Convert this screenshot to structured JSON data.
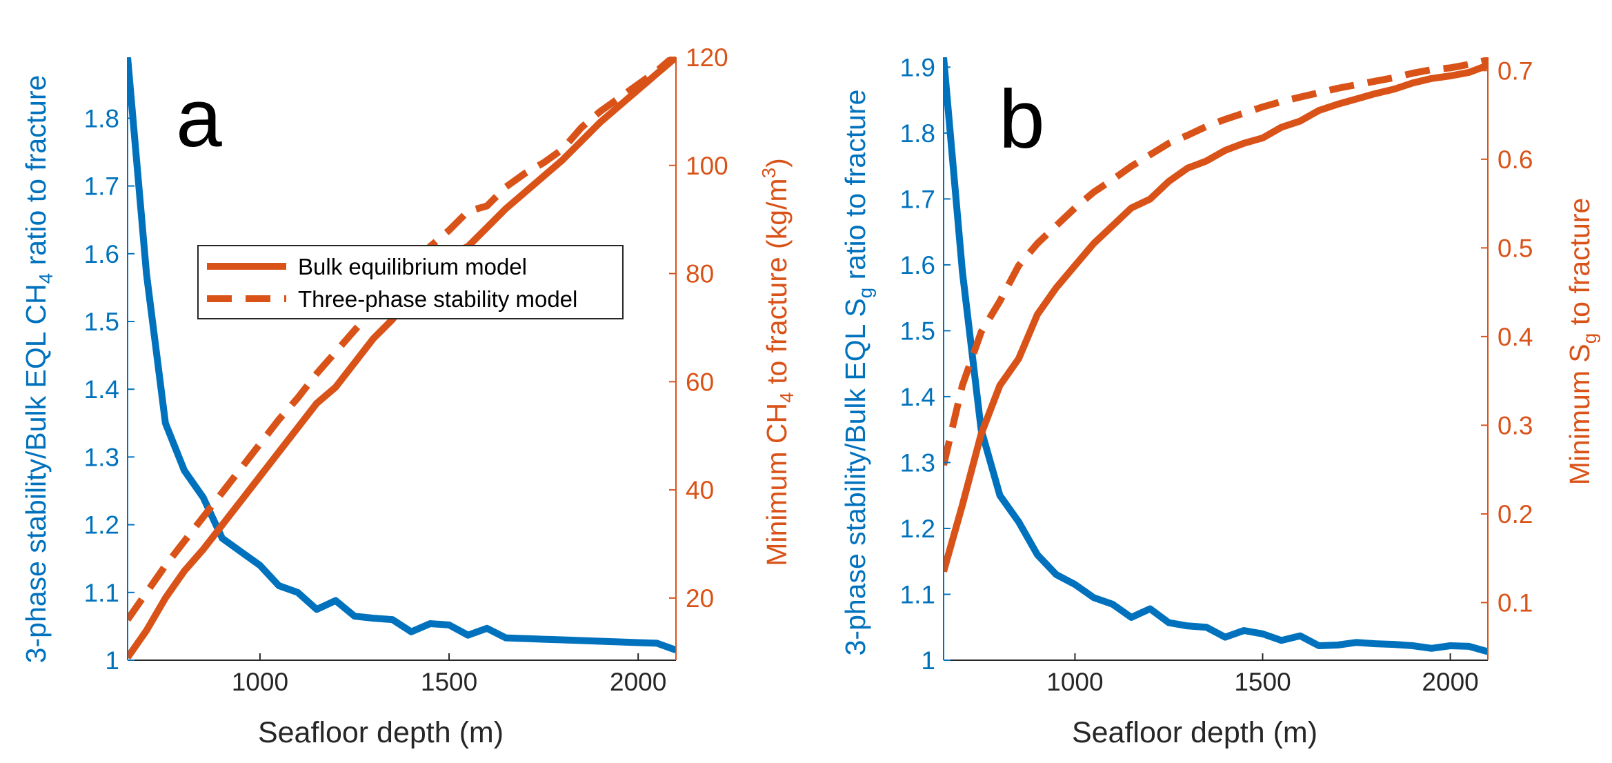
{
  "colors": {
    "ratio": "#0072BD",
    "minimum": "#D95319",
    "axis": "#262626"
  },
  "legend": {
    "items": [
      {
        "label": "Bulk equilibrium model",
        "style": "solid"
      },
      {
        "label": "Three-phase stability model",
        "style": "dashed"
      }
    ]
  },
  "chart_data": [
    {
      "type": "line",
      "panel_label": "a",
      "xlabel": "Seafloor depth (m)",
      "ylabel_left": {
        "main": "3-phase stability/Bulk EQL CH",
        "sub": "4",
        "suffix": " ratio to fracture"
      },
      "ylabel_right": {
        "main": "Minimum CH",
        "sub": "4",
        "mid": " to fracture (kg/m",
        "sup": "3",
        "suffix": ")"
      },
      "xlim": [
        650,
        2100
      ],
      "ylim_left": [
        1,
        1.89
      ],
      "ylim_right": [
        8.5,
        120
      ],
      "xticks": [
        1000,
        1500,
        2000
      ],
      "xtick_labels": [
        "1000",
        "1500",
        "2000"
      ],
      "yticks_left": [
        1,
        1.1,
        1.2,
        1.3,
        1.4,
        1.5,
        1.6,
        1.7,
        1.8
      ],
      "ytick_labels_left": [
        "1",
        "1.1",
        "1.2",
        "1.3",
        "1.4",
        "1.5",
        "1.6",
        "1.7",
        "1.8"
      ],
      "yticks_right": [
        20,
        40,
        60,
        80,
        100,
        120
      ],
      "ytick_labels_right": [
        "20",
        "40",
        "60",
        "80",
        "100",
        "120"
      ],
      "legend_position": "middle-left",
      "series": [
        {
          "axis": "left",
          "style": "solid",
          "color": "ratio",
          "x": [
            650,
            700,
            750,
            800,
            850,
            900,
            950,
            1000,
            1050,
            1100,
            1150,
            1200,
            1250,
            1300,
            1350,
            1400,
            1450,
            1500,
            1550,
            1600,
            1650,
            1700,
            1750,
            1800,
            1850,
            1900,
            1950,
            2000,
            2050,
            2100
          ],
          "values": [
            1.89,
            1.57,
            1.35,
            1.28,
            1.24,
            1.18,
            1.16,
            1.14,
            1.11,
            1.1,
            1.075,
            1.088,
            1.065,
            1.062,
            1.06,
            1.042,
            1.054,
            1.052,
            1.037,
            1.047,
            1.033,
            1.032,
            1.031,
            1.03,
            1.029,
            1.028,
            1.027,
            1.026,
            1.025,
            1.015
          ]
        },
        {
          "axis": "right",
          "style": "solid",
          "color": "minimum",
          "x": [
            650,
            700,
            750,
            800,
            850,
            900,
            950,
            1000,
            1050,
            1100,
            1150,
            1200,
            1250,
            1300,
            1350,
            1400,
            1450,
            1500,
            1550,
            1600,
            1650,
            1700,
            1750,
            1800,
            1850,
            1900,
            1950,
            2000,
            2050,
            2100
          ],
          "values": [
            9,
            14,
            20,
            25,
            29,
            33.5,
            38,
            42.5,
            47,
            51.5,
            56,
            59,
            63.5,
            68,
            71.5,
            76,
            80,
            83.5,
            85,
            88.5,
            92,
            95,
            98,
            101,
            104.5,
            108,
            111,
            114,
            117,
            120
          ]
        },
        {
          "axis": "right",
          "style": "dashed",
          "color": "minimum",
          "x": [
            650,
            700,
            750,
            800,
            850,
            900,
            950,
            1000,
            1050,
            1100,
            1150,
            1200,
            1250,
            1300,
            1350,
            1400,
            1450,
            1500,
            1550,
            1600,
            1650,
            1700,
            1750,
            1800,
            1850,
            1900,
            1950,
            2000,
            2050,
            2100
          ],
          "values": [
            16,
            21,
            26,
            30.5,
            35,
            39.5,
            44,
            48.5,
            53,
            57,
            61.5,
            65.5,
            69.5,
            73.5,
            77.5,
            81,
            85,
            88,
            91.5,
            92.5,
            96,
            98.5,
            100.5,
            103,
            107,
            110,
            112.5,
            115,
            117.5,
            120.5
          ]
        }
      ]
    },
    {
      "type": "line",
      "panel_label": "b",
      "xlabel": "Seafloor depth (m)",
      "ylabel_left": {
        "main": "3-phase stability/Bulk EQL S",
        "sub": "g",
        "suffix": " ratio to fracture"
      },
      "ylabel_right": {
        "main": "Minimum S",
        "sub": "g",
        "mid": " to fracture",
        "sup": "",
        "suffix": ""
      },
      "xlim": [
        650,
        2100
      ],
      "ylim_left": [
        1,
        1.915
      ],
      "ylim_right": [
        0.035,
        0.715
      ],
      "xticks": [
        1000,
        1500,
        2000
      ],
      "xtick_labels": [
        "1000",
        "1500",
        "2000"
      ],
      "yticks_left": [
        1,
        1.1,
        1.2,
        1.3,
        1.4,
        1.5,
        1.6,
        1.7,
        1.8,
        1.9
      ],
      "ytick_labels_left": [
        "1",
        "1.1",
        "1.2",
        "1.3",
        "1.4",
        "1.5",
        "1.6",
        "1.7",
        "1.8",
        "1.9"
      ],
      "yticks_right": [
        0.1,
        0.2,
        0.3,
        0.4,
        0.5,
        0.6,
        0.7
      ],
      "ytick_labels_right": [
        "0.1",
        "0.2",
        "0.3",
        "0.4",
        "0.5",
        "0.6",
        "0.7"
      ],
      "series": [
        {
          "axis": "left",
          "style": "solid",
          "color": "ratio",
          "x": [
            650,
            700,
            750,
            800,
            850,
            900,
            950,
            1000,
            1050,
            1100,
            1150,
            1200,
            1250,
            1300,
            1350,
            1400,
            1450,
            1500,
            1550,
            1600,
            1650,
            1700,
            1750,
            1800,
            1850,
            1900,
            1950,
            2000,
            2050,
            2100
          ],
          "values": [
            1.915,
            1.59,
            1.35,
            1.25,
            1.21,
            1.16,
            1.13,
            1.115,
            1.095,
            1.085,
            1.065,
            1.078,
            1.057,
            1.052,
            1.05,
            1.035,
            1.045,
            1.04,
            1.03,
            1.037,
            1.022,
            1.023,
            1.027,
            1.025,
            1.024,
            1.022,
            1.018,
            1.022,
            1.021,
            1.013
          ]
        },
        {
          "axis": "right",
          "style": "solid",
          "color": "minimum",
          "x": [
            650,
            700,
            750,
            800,
            850,
            900,
            950,
            1000,
            1050,
            1100,
            1150,
            1200,
            1250,
            1300,
            1350,
            1400,
            1450,
            1500,
            1550,
            1600,
            1650,
            1700,
            1750,
            1800,
            1850,
            1900,
            1950,
            2000,
            2050,
            2100
          ],
          "values": [
            0.135,
            0.21,
            0.29,
            0.345,
            0.375,
            0.425,
            0.455,
            0.48,
            0.505,
            0.525,
            0.545,
            0.555,
            0.575,
            0.59,
            0.598,
            0.61,
            0.618,
            0.624,
            0.636,
            0.643,
            0.655,
            0.662,
            0.668,
            0.674,
            0.679,
            0.686,
            0.691,
            0.694,
            0.698,
            0.706
          ]
        },
        {
          "axis": "right",
          "style": "dashed",
          "color": "minimum",
          "x": [
            650,
            700,
            750,
            800,
            850,
            900,
            950,
            1000,
            1050,
            1100,
            1150,
            1200,
            1250,
            1300,
            1350,
            1400,
            1450,
            1500,
            1550,
            1600,
            1650,
            1700,
            1750,
            1800,
            1850,
            1900,
            1950,
            2000,
            2050,
            2100
          ],
          "values": [
            0.255,
            0.345,
            0.405,
            0.44,
            0.48,
            0.505,
            0.525,
            0.545,
            0.563,
            0.577,
            0.592,
            0.605,
            0.618,
            0.627,
            0.637,
            0.645,
            0.652,
            0.659,
            0.665,
            0.67,
            0.675,
            0.68,
            0.684,
            0.688,
            0.692,
            0.697,
            0.701,
            0.703,
            0.707,
            0.712
          ]
        }
      ]
    }
  ]
}
